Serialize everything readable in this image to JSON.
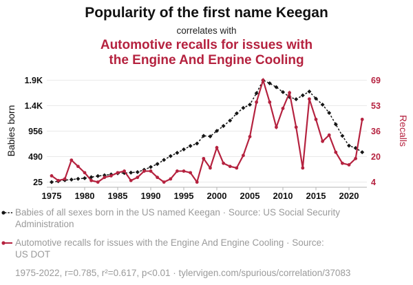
{
  "header": {
    "title": "Popularity of the first name Keegan",
    "connector": "correlates with",
    "subtitle_lines": [
      "Automotive recalls for issues with",
      "the Engine And Engine Cooling"
    ]
  },
  "colors": {
    "accent_red": "#b5223f",
    "series_black": "#161616",
    "muted_text": "#9a9a9a",
    "gridline": "#e9e9e9",
    "axis": "#b3b3b3"
  },
  "chart_data": {
    "type": "line",
    "title": "Popularity of the first name Keegan correlates with Automotive recalls for issues with the Engine And Engine Cooling",
    "x": [
      1975,
      1976,
      1977,
      1978,
      1979,
      1980,
      1981,
      1982,
      1983,
      1984,
      1985,
      1986,
      1987,
      1988,
      1989,
      1990,
      1991,
      1992,
      1993,
      1994,
      1995,
      1996,
      1997,
      1998,
      1999,
      2000,
      2001,
      2002,
      2003,
      2004,
      2005,
      2006,
      2007,
      2008,
      2009,
      2010,
      2011,
      2012,
      2013,
      2014,
      2015,
      2016,
      2017,
      2018,
      2019,
      2020,
      2021,
      2022
    ],
    "x_ticks": [
      1975,
      1980,
      1985,
      1990,
      1995,
      2000,
      2005,
      2010,
      2015,
      2020
    ],
    "grid": true,
    "legend_position": "bottom",
    "left_axis": {
      "label": "Babies born",
      "ticks": [
        "25",
        "490",
        "956",
        "1.4K",
        "1.9K"
      ],
      "tick_values": [
        25,
        490.5,
        956,
        1421.5,
        1887
      ],
      "range": [
        25,
        1887
      ]
    },
    "right_axis": {
      "label": "Recalls",
      "ticks": [
        "4",
        "20",
        "36",
        "53",
        "69"
      ],
      "tick_values": [
        4,
        20.25,
        36.5,
        52.75,
        69
      ],
      "range": [
        4,
        69
      ]
    },
    "series": [
      {
        "name": "Babies of all sexes born in the US named Keegan",
        "axis": "left",
        "style": "dashed-diamond",
        "color": "#161616",
        "values": [
          25,
          40,
          60,
          70,
          85,
          95,
          115,
          135,
          150,
          165,
          185,
          190,
          198,
          208,
          250,
          300,
          355,
          430,
          500,
          560,
          622,
          685,
          730,
          870,
          860,
          960,
          1050,
          1150,
          1280,
          1380,
          1440,
          1650,
          1887,
          1830,
          1760,
          1670,
          1580,
          1540,
          1610,
          1680,
          1550,
          1440,
          1290,
          1080,
          870,
          690,
          648,
          570
        ]
      },
      {
        "name": "Automotive recalls for issues with the Engine And Engine Cooling",
        "axis": "right",
        "style": "solid-circle",
        "color": "#b5223f",
        "values": [
          8,
          5,
          6,
          18,
          14,
          10,
          5,
          4,
          7,
          8,
          10,
          11,
          5,
          7,
          11,
          11,
          7,
          4,
          6,
          11,
          11,
          10,
          4,
          19,
          13,
          26,
          16,
          14,
          13,
          21,
          33,
          55,
          69,
          55,
          39,
          51,
          61,
          39,
          13,
          57,
          44,
          30,
          34,
          23,
          16,
          15,
          19,
          44
        ]
      }
    ]
  },
  "legend": {
    "items": [
      {
        "series": "babies",
        "line1": "Babies of all sexes born in the US named Keegan · Source: US Social Security",
        "line2": "Administration"
      },
      {
        "series": "recalls",
        "line1": "Automotive recalls for issues with the Engine And Engine Cooling · Source:",
        "line2": "US DOT"
      }
    ]
  },
  "footer": {
    "text": "1975-2022, r=0.785, r²=0.617, p<0.01 · tylervigen.com/spurious/correlation/37083"
  }
}
